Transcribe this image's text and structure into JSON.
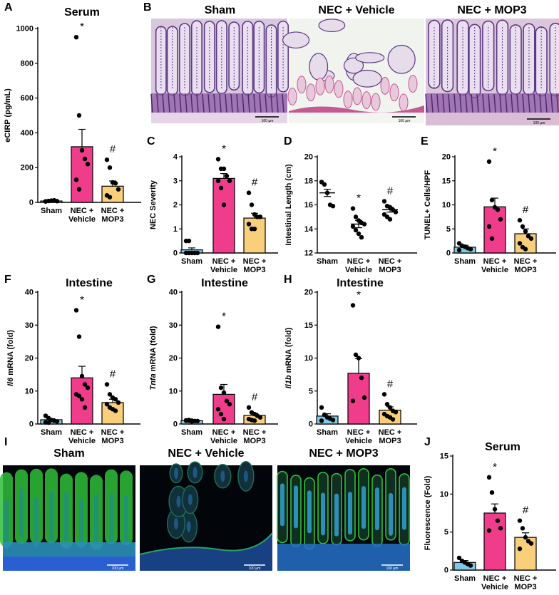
{
  "panel_letters": {
    "A": "A",
    "B": "B",
    "C": "C",
    "D": "D",
    "E": "E",
    "F": "F",
    "G": "G",
    "H": "H",
    "I": "I",
    "J": "J"
  },
  "histology": {
    "titles": [
      "Sham",
      "NEC + Vehicle",
      "NEC + MOP3"
    ],
    "scale_bar": "100 µm",
    "colors": {
      "sham_bg": "#d8c8de",
      "vehicle_bg": "#e9ece6",
      "mop3_bg": "#dcc6dc",
      "stain_dark": "#5c3a82",
      "stain_pink": "#c55a92"
    }
  },
  "fluorescence": {
    "titles": [
      "Sham",
      "NEC + Vehicle",
      "NEC + MOP3"
    ],
    "scale_bar": "100 µm",
    "colors": {
      "green": "#2fbf3a",
      "blue": "#2a5bd8",
      "black": "#02050a"
    }
  },
  "colors": {
    "sham": "#7fc8e8",
    "vehicle": "#ef3d8c",
    "mop3": "#f9cf7c",
    "point": "#000000"
  },
  "chart_data": [
    {
      "id": "A",
      "type": "bar",
      "title": "Serum",
      "ylabel": "eCIRP (pg/mL)",
      "xlabel": "",
      "ylim": [
        0,
        1000
      ],
      "yticks": [
        0,
        200,
        400,
        600,
        800,
        1000
      ],
      "categories": [
        "Sham",
        "NEC + Vehicle",
        "NEC + MOP3"
      ],
      "values": [
        8,
        320,
        93
      ],
      "sem": [
        3,
        100,
        30
      ],
      "points": [
        [
          5,
          8,
          10,
          12,
          7,
          6
        ],
        [
          950,
          500,
          300,
          250,
          220,
          130,
          75
        ],
        [
          245,
          200,
          115,
          110,
          75,
          40,
          30
        ]
      ],
      "annotations": [
        "",
        "*",
        "#"
      ]
    },
    {
      "id": "C",
      "type": "bar",
      "title": "",
      "ylabel": "NEC Severity",
      "xlabel": "",
      "ylim": [
        0,
        4
      ],
      "yticks": [
        0,
        1,
        2,
        3,
        4
      ],
      "categories": [
        "Sham",
        "NEC + Vehicle",
        "NEC + MOP3"
      ],
      "values": [
        0.13,
        3.1,
        1.45
      ],
      "sem": [
        0.08,
        0.2,
        0.2
      ],
      "points": [
        [
          0,
          0,
          0,
          0,
          0,
          0.5,
          0.5
        ],
        [
          3.9,
          3.5,
          3.5,
          3.2,
          3,
          3,
          2.7,
          2
        ],
        [
          2.5,
          2,
          1.6,
          1.5,
          1.5,
          1.2,
          1,
          1
        ]
      ],
      "annotations": [
        "",
        "*",
        "#"
      ]
    },
    {
      "id": "D",
      "type": "scatter",
      "title": "",
      "ylabel": "Intestinal Length (cm)",
      "xlabel": "",
      "ylim": [
        12,
        20
      ],
      "yticks": [
        12,
        14,
        16,
        18,
        20
      ],
      "categories": [
        "Sham",
        "NEC + Vehicle",
        "NEC + MOP3"
      ],
      "values": [
        17,
        14.4,
        15.6
      ],
      "sem": [
        0.3,
        0.3,
        0.2
      ],
      "points": [
        [
          17.9,
          17.7,
          17,
          16,
          15.9
        ],
        [
          15.7,
          15,
          14.7,
          14.5,
          14.4,
          14.2,
          13.9,
          13.6,
          13.3
        ],
        [
          16.3,
          15.9,
          15.8,
          15.6,
          15.4,
          15.2,
          15,
          14.8
        ]
      ],
      "annotations": [
        "",
        "*",
        "#"
      ]
    },
    {
      "id": "E",
      "type": "bar",
      "title": "",
      "ylabel": "TUNEL+ Cells/HPF",
      "xlabel": "",
      "ylim": [
        0,
        20
      ],
      "yticks": [
        0,
        5,
        10,
        15,
        20
      ],
      "categories": [
        "Sham",
        "NEC + Vehicle",
        "NEC + MOP3"
      ],
      "values": [
        1.2,
        9.6,
        4
      ],
      "sem": [
        0.4,
        1.8,
        1
      ],
      "points": [
        [
          2,
          1.5,
          1.3,
          1,
          0.8,
          0.6
        ],
        [
          19,
          11,
          9.5,
          9,
          7,
          5.5,
          3
        ],
        [
          6.8,
          5.5,
          4.5,
          3.5,
          3,
          2,
          1.2,
          0.8
        ]
      ],
      "annotations": [
        "",
        "*",
        "#"
      ]
    },
    {
      "id": "F",
      "type": "bar",
      "title": "Intestine",
      "ylabel": "Il6 mRNA (fold)",
      "ylabel_italic": "Il6",
      "ylabel_rest": " mRNA (fold)",
      "xlabel": "",
      "ylim": [
        0,
        40
      ],
      "yticks": [
        0,
        10,
        20,
        30,
        40
      ],
      "categories": [
        "Sham",
        "NEC + Vehicle",
        "NEC + MOP3"
      ],
      "values": [
        1.3,
        14,
        6.5
      ],
      "sem": [
        0.3,
        3.5,
        1
      ],
      "points": [
        [
          2.5,
          1.8,
          1.2,
          1,
          0.8,
          0.5,
          0.4
        ],
        [
          34.5,
          26.5,
          14.5,
          12,
          11,
          9,
          8.5,
          7.5,
          5
        ],
        [
          12,
          9,
          8,
          7.5,
          6.5,
          6,
          5,
          4.5,
          4
        ]
      ],
      "annotations": [
        "",
        "*",
        "#"
      ]
    },
    {
      "id": "G",
      "type": "bar",
      "title": "Intestine",
      "ylabel": "Tnfa mRNA (fold)",
      "ylabel_italic": "Tnfa",
      "ylabel_rest": " mRNA (fold)",
      "xlabel": "",
      "ylim": [
        0,
        40
      ],
      "yticks": [
        0,
        10,
        20,
        30,
        40
      ],
      "categories": [
        "Sham",
        "NEC + Vehicle",
        "NEC + MOP3"
      ],
      "values": [
        1,
        9,
        2.6
      ],
      "sem": [
        0.1,
        3,
        0.6
      ],
      "points": [
        [
          1.1,
          1,
          1,
          0.9,
          0.9,
          1,
          1.2,
          0.8
        ],
        [
          29.5,
          11,
          9.5,
          7,
          6,
          4.5,
          3,
          1.5
        ],
        [
          5,
          3.5,
          3,
          2.5,
          2,
          1.5,
          1.2,
          1
        ]
      ],
      "annotations": [
        "",
        "*",
        "#"
      ]
    },
    {
      "id": "H",
      "type": "bar",
      "title": "Intestine",
      "ylabel": "Il1b mRNA (fold)",
      "ylabel_italic": "Il1b",
      "ylabel_rest": " mRNA (fold)",
      "xlabel": "",
      "ylim": [
        0,
        20
      ],
      "yticks": [
        0,
        5,
        10,
        15,
        20
      ],
      "categories": [
        "Sham",
        "NEC + Vehicle",
        "NEC + MOP3"
      ],
      "values": [
        1.2,
        7.7,
        2.1
      ],
      "sem": [
        0.35,
        2.2,
        0.5
      ],
      "points": [
        [
          2.5,
          1.4,
          1,
          0.8,
          0.6,
          0.5
        ],
        [
          18,
          10.5,
          10,
          7,
          4,
          3.5
        ],
        [
          4.5,
          3,
          2.5,
          2,
          1.8,
          1.5,
          1.2,
          1,
          0.7
        ]
      ],
      "annotations": [
        "",
        "*",
        "#"
      ]
    },
    {
      "id": "J",
      "type": "bar",
      "title": "Serum",
      "ylabel": "Fluorescence (Fold)",
      "xlabel": "",
      "ylim": [
        0,
        15
      ],
      "yticks": [
        0,
        5,
        10,
        15
      ],
      "categories": [
        "Sham",
        "NEC + Vehicle",
        "NEC + MOP3"
      ],
      "values": [
        1,
        7.5,
        4.3
      ],
      "sem": [
        0.25,
        1.2,
        0.6
      ],
      "points": [
        [
          1.6,
          1.2,
          1,
          0.8,
          0.6
        ],
        [
          12.2,
          10.2,
          8,
          6.5,
          5.5,
          5.2
        ],
        [
          6.5,
          5.5,
          4.3,
          3.8,
          3.5,
          2.8
        ]
      ],
      "annotations": [
        "",
        "*",
        "#"
      ]
    }
  ]
}
